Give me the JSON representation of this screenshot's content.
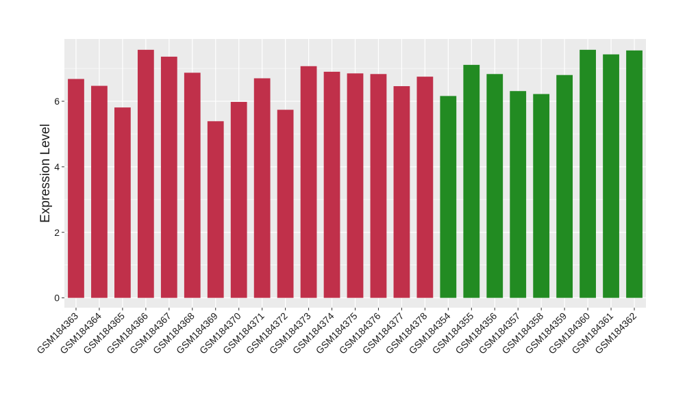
{
  "chart_data": {
    "type": "bar",
    "title": "",
    "xlabel": "",
    "ylabel": "Expression Level",
    "ylim": [
      -0.3,
      7.9
    ],
    "yticks": [
      0,
      2,
      4,
      6
    ],
    "grid": true,
    "legend": "none",
    "colors": {
      "group_a": "#C0304A",
      "group_b": "#228B22",
      "panel_bg": "#EBEBEB",
      "grid": "#FFFFFF",
      "text": "#1A1A1A"
    },
    "categories": [
      "GSM184363",
      "GSM184364",
      "GSM184365",
      "GSM184366",
      "GSM184367",
      "GSM184368",
      "GSM184369",
      "GSM184370",
      "GSM184371",
      "GSM184372",
      "GSM184373",
      "GSM184374",
      "GSM184375",
      "GSM184376",
      "GSM184377",
      "GSM184378",
      "GSM184354",
      "GSM184355",
      "GSM184356",
      "GSM184357",
      "GSM184358",
      "GSM184359",
      "GSM184360",
      "GSM184361",
      "GSM184362"
    ],
    "values": [
      6.68,
      6.47,
      5.81,
      7.57,
      7.36,
      6.87,
      5.39,
      5.98,
      6.7,
      5.74,
      7.07,
      6.9,
      6.85,
      6.83,
      6.46,
      6.75,
      6.16,
      7.11,
      6.83,
      6.31,
      6.22,
      6.8,
      7.57,
      7.43,
      7.55
    ],
    "groups": [
      "group_a",
      "group_a",
      "group_a",
      "group_a",
      "group_a",
      "group_a",
      "group_a",
      "group_a",
      "group_a",
      "group_a",
      "group_a",
      "group_a",
      "group_a",
      "group_a",
      "group_a",
      "group_a",
      "group_b",
      "group_b",
      "group_b",
      "group_b",
      "group_b",
      "group_b",
      "group_b",
      "group_b",
      "group_b"
    ]
  }
}
